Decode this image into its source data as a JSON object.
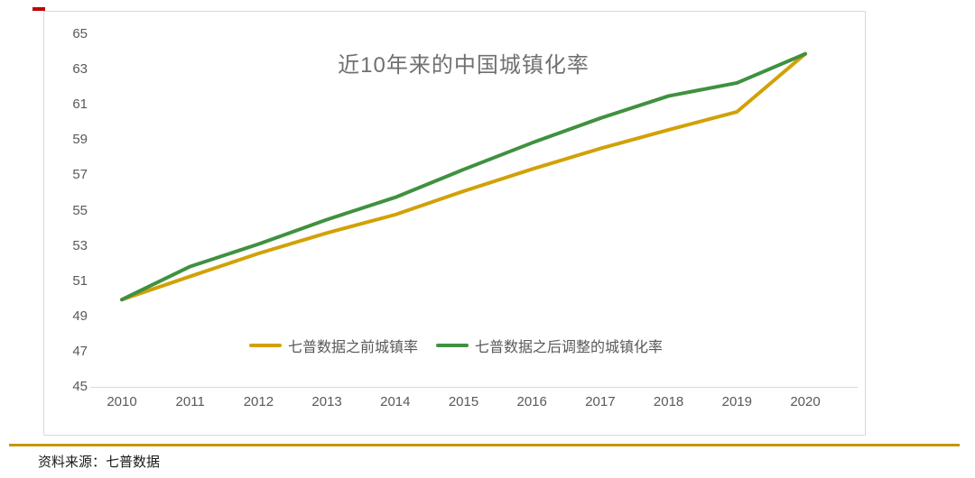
{
  "chart": {
    "title": "近10年来的中国城镇化率",
    "legend": [
      "七普数据之前城镇率",
      "七普数据之后调整的城镇化率"
    ]
  },
  "source": {
    "text": "资料来源：七普数据"
  },
  "colors": {
    "pre_census_line": "#D2A106",
    "adjusted_line": "#3F9140",
    "separator_line": "#C79500",
    "frame_border": "#D9D9D9",
    "axis_line": "#D9D9D9",
    "tick_text": "#595959",
    "title_text": "#707070",
    "source_text": "#1A1A1A",
    "red_mark": "#C00000"
  },
  "chart_data": {
    "type": "line",
    "title": "近10年来的中国城镇化率",
    "categories": [
      "2010",
      "2011",
      "2012",
      "2013",
      "2014",
      "2015",
      "2016",
      "2017",
      "2018",
      "2019",
      "2020"
    ],
    "series": [
      {
        "name": "七普数据之前城镇率",
        "color": "#D2A106",
        "values": [
          49.95,
          51.27,
          52.57,
          53.73,
          54.77,
          56.1,
          57.35,
          58.52,
          59.58,
          60.6,
          63.89
        ]
      },
      {
        "name": "七普数据之后调整的城镇化率",
        "color": "#3F9140",
        "values": [
          49.95,
          51.83,
          53.1,
          54.49,
          55.75,
          57.33,
          58.84,
          60.24,
          61.5,
          62.24,
          63.89
        ]
      }
    ],
    "xlabel": "",
    "ylabel": "",
    "ylim": [
      45,
      65
    ],
    "yticks": [
      45,
      47,
      49,
      51,
      53,
      55,
      57,
      59,
      61,
      63,
      65
    ],
    "grid": false,
    "legend_position": "bottom-center-inside"
  }
}
